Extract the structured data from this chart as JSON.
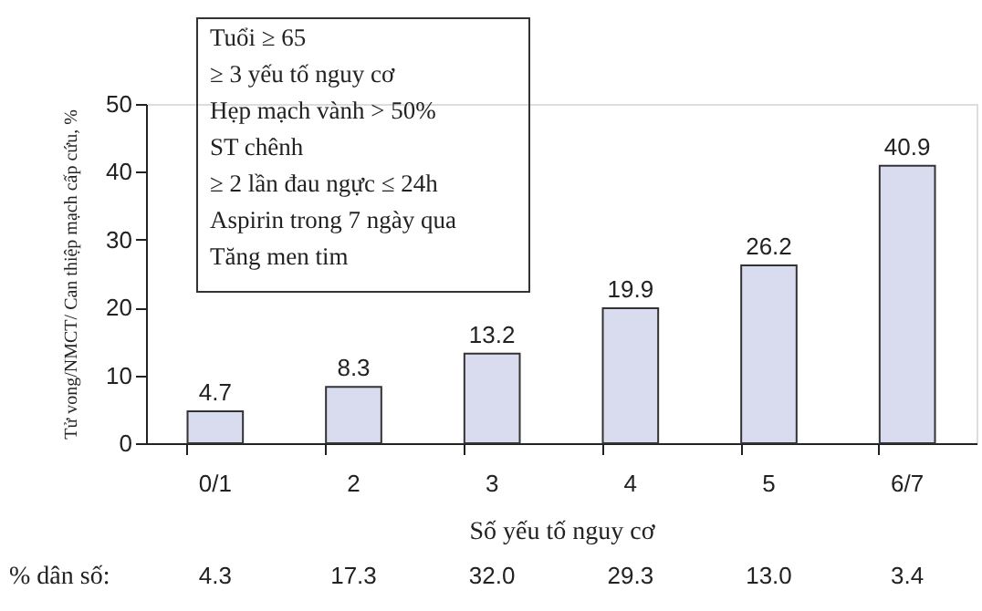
{
  "chart_data": {
    "type": "bar",
    "xlabel": "Số yếu tố nguy cơ",
    "ylabel": "Tử vong/NMCT/ Can thiệp mạch cấp cứu, %",
    "categories": [
      "0/1",
      "2",
      "3",
      "4",
      "5",
      "6/7"
    ],
    "values": [
      4.7,
      8.3,
      13.2,
      19.9,
      26.2,
      40.9
    ],
    "color": "#d9dcef",
    "ylim": [
      0,
      50
    ],
    "yticks": [
      0,
      10,
      20,
      30,
      40,
      50
    ],
    "grid": false,
    "data_labels": true,
    "annotations": [
      "Tuổi ≥ 65\n≥ 3 yếu tố nguy cơ\nHẹp mạch vành > 50%\nST chênh\n≥ 2 lần đau ngực ≤ 24h\nAspirin trong 7 ngày qua\nTăng men tim",
      "% dân số:",
      "4.3",
      "17.3",
      "32.0",
      "29.3",
      "13.0",
      "3.4"
    ]
  }
}
